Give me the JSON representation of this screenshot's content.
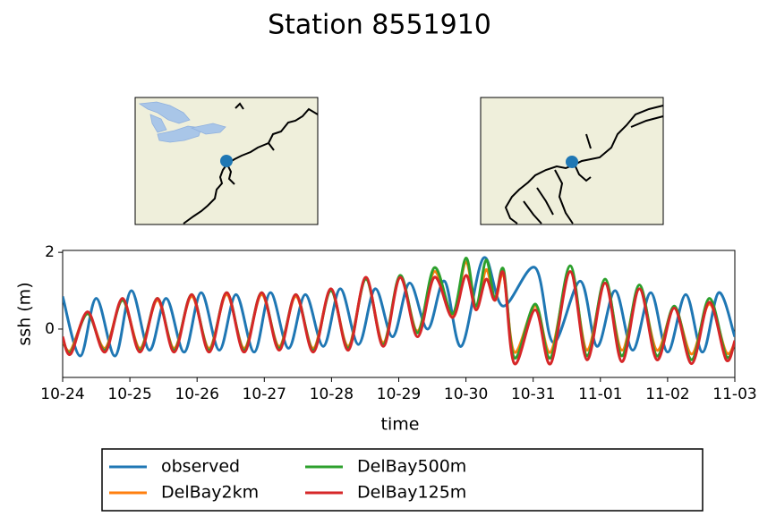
{
  "chart_data": {
    "type": "line",
    "title": "Station 8551910",
    "xlabel": "time",
    "ylabel": "ssh (m)",
    "xlim": [
      0,
      10
    ],
    "xticks": [
      {
        "value": 0,
        "label": "10-24"
      },
      {
        "value": 1,
        "label": "10-25"
      },
      {
        "value": 2,
        "label": "10-26"
      },
      {
        "value": 3,
        "label": "10-27"
      },
      {
        "value": 4,
        "label": "10-28"
      },
      {
        "value": 5,
        "label": "10-29"
      },
      {
        "value": 6,
        "label": "10-30"
      },
      {
        "value": 7,
        "label": "10-31"
      },
      {
        "value": 8,
        "label": "11-01"
      },
      {
        "value": 9,
        "label": "11-02"
      },
      {
        "value": 10,
        "label": "11-03"
      }
    ],
    "ylim": [
      -1.26,
      2.05
    ],
    "yticks": [
      0,
      2
    ],
    "legend": "bottom",
    "series": [
      {
        "name": "observed",
        "color": "#1f77b4",
        "x": [
          0,
          0.26,
          0.5,
          0.78,
          1.02,
          1.29,
          1.54,
          1.81,
          2.06,
          2.33,
          2.58,
          2.85,
          3.09,
          3.36,
          3.61,
          3.88,
          4.13,
          4.4,
          4.65,
          4.91,
          5.16,
          5.43,
          5.68,
          5.93,
          6.26,
          6.55,
          7.03,
          7.3,
          7.7,
          7.95,
          8.22,
          8.48,
          8.75,
          9.0,
          9.27,
          9.52,
          9.76,
          10
        ],
        "values": [
          0.85,
          -0.7,
          0.8,
          -0.7,
          1.0,
          -0.55,
          0.8,
          -0.6,
          0.95,
          -0.55,
          0.9,
          -0.6,
          0.95,
          -0.5,
          0.9,
          -0.45,
          1.05,
          -0.4,
          1.05,
          -0.2,
          1.2,
          0.0,
          1.25,
          -0.45,
          1.85,
          0.6,
          1.6,
          -0.35,
          1.25,
          -0.45,
          1.0,
          -0.55,
          0.95,
          -0.6,
          0.9,
          -0.6,
          0.95,
          -0.2
        ]
      },
      {
        "name": "DelBay2km",
        "color": "#ff7f0e",
        "x": [
          0,
          0.12,
          0.37,
          0.63,
          0.89,
          1.15,
          1.41,
          1.66,
          1.92,
          2.18,
          2.44,
          2.7,
          2.96,
          3.22,
          3.47,
          3.73,
          3.99,
          4.25,
          4.51,
          4.77,
          5.02,
          5.28,
          5.53,
          5.8,
          6.0,
          6.15,
          6.3,
          6.43,
          6.56,
          6.72,
          7.03,
          7.26,
          7.55,
          7.8,
          8.07,
          8.32,
          8.58,
          8.84,
          9.1,
          9.36,
          9.62,
          9.87,
          10
        ],
        "values": [
          -0.3,
          -0.55,
          0.4,
          -0.5,
          0.75,
          -0.5,
          0.75,
          -0.5,
          0.85,
          -0.5,
          0.9,
          -0.5,
          0.9,
          -0.45,
          0.85,
          -0.5,
          1.0,
          -0.45,
          1.3,
          -0.35,
          1.35,
          -0.05,
          1.5,
          0.35,
          1.75,
          0.5,
          1.55,
          0.75,
          1.4,
          -0.6,
          0.6,
          -0.6,
          1.5,
          -0.55,
          1.2,
          -0.55,
          1.05,
          -0.55,
          0.55,
          -0.65,
          0.65,
          -0.6,
          -0.35
        ]
      },
      {
        "name": "DelBay500m",
        "color": "#2ca02c",
        "x": [
          0,
          0.12,
          0.37,
          0.63,
          0.89,
          1.15,
          1.41,
          1.66,
          1.92,
          2.18,
          2.44,
          2.7,
          2.96,
          3.22,
          3.47,
          3.73,
          3.99,
          4.25,
          4.51,
          4.77,
          5.02,
          5.28,
          5.53,
          5.8,
          6.0,
          6.15,
          6.3,
          6.43,
          6.56,
          6.72,
          7.03,
          7.26,
          7.55,
          7.8,
          8.07,
          8.32,
          8.58,
          8.84,
          9.1,
          9.36,
          9.62,
          9.87,
          10
        ],
        "values": [
          -0.25,
          -0.6,
          0.4,
          -0.55,
          0.75,
          -0.55,
          0.8,
          -0.55,
          0.9,
          -0.55,
          0.95,
          -0.55,
          0.95,
          -0.5,
          0.9,
          -0.55,
          1.0,
          -0.5,
          1.3,
          -0.4,
          1.4,
          -0.1,
          1.6,
          0.4,
          1.85,
          0.6,
          1.8,
          0.8,
          1.55,
          -0.75,
          0.65,
          -0.75,
          1.65,
          -0.7,
          1.3,
          -0.7,
          1.15,
          -0.7,
          0.6,
          -0.8,
          0.8,
          -0.7,
          -0.35
        ]
      },
      {
        "name": "DelBay125m",
        "color": "#d62728",
        "x": [
          0,
          0.12,
          0.37,
          0.63,
          0.89,
          1.15,
          1.41,
          1.66,
          1.92,
          2.18,
          2.44,
          2.7,
          2.96,
          3.22,
          3.47,
          3.73,
          3.99,
          4.25,
          4.51,
          4.77,
          5.02,
          5.28,
          5.53,
          5.8,
          6.0,
          6.15,
          6.3,
          6.43,
          6.56,
          6.72,
          7.03,
          7.26,
          7.55,
          7.8,
          8.07,
          8.32,
          8.58,
          8.84,
          9.1,
          9.36,
          9.62,
          9.87,
          10
        ],
        "values": [
          -0.2,
          -0.65,
          0.45,
          -0.6,
          0.8,
          -0.6,
          0.8,
          -0.6,
          0.9,
          -0.6,
          0.95,
          -0.6,
          0.95,
          -0.55,
          0.9,
          -0.6,
          1.05,
          -0.55,
          1.35,
          -0.45,
          1.35,
          -0.2,
          1.35,
          0.3,
          1.4,
          0.5,
          1.3,
          0.75,
          1.45,
          -0.9,
          0.5,
          -0.9,
          1.5,
          -0.8,
          1.2,
          -0.85,
          1.05,
          -0.8,
          0.55,
          -0.9,
          0.7,
          -0.8,
          -0.3
        ]
      }
    ]
  }
}
